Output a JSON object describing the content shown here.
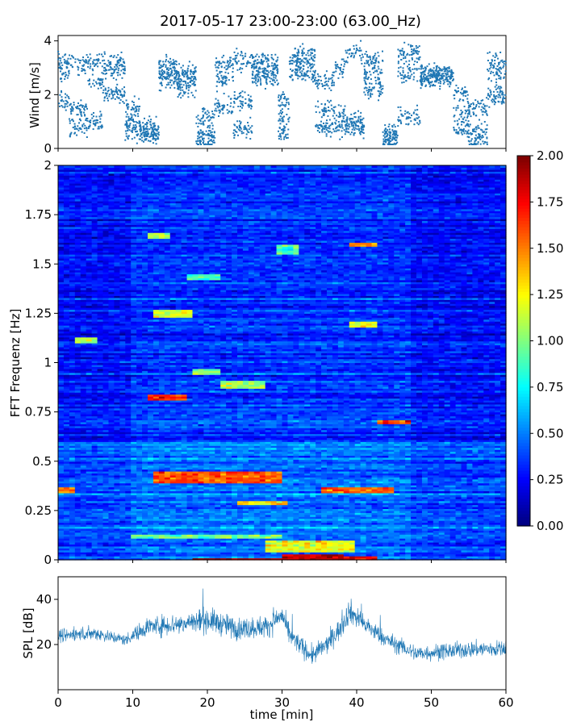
{
  "chart_data": [
    {
      "type": "scatter",
      "title": "2017-05-17 23:00-23:00 (63.00_Hz)",
      "ylabel": "Wind [m/s]",
      "xlim": [
        0,
        60
      ],
      "ylim": [
        0,
        4.2
      ],
      "yticks": [
        "0",
        "2",
        "4"
      ],
      "color": "#1f77b4",
      "segments": [
        {
          "x0": 0,
          "x1": 1.5,
          "levels": [
            3.2,
            2.8,
            1.8
          ]
        },
        {
          "x0": 1.5,
          "x1": 4,
          "levels": [
            3.1,
            1.5,
            0.8
          ]
        },
        {
          "x0": 4,
          "x1": 6,
          "levels": [
            3.2,
            2.5,
            1.0
          ]
        },
        {
          "x0": 6,
          "x1": 9,
          "levels": [
            3.2,
            2.9,
            2.0
          ]
        },
        {
          "x0": 9,
          "x1": 11,
          "levels": [
            1.5,
            0.6,
            0.9
          ]
        },
        {
          "x0": 11,
          "x1": 13.5,
          "levels": [
            0.8,
            0.6,
            0.5
          ]
        },
        {
          "x0": 13.5,
          "x1": 16,
          "levels": [
            3.1,
            2.8,
            2.5
          ]
        },
        {
          "x0": 16,
          "x1": 18.5,
          "levels": [
            2.8,
            2.6,
            2.2
          ]
        },
        {
          "x0": 18.5,
          "x1": 21,
          "levels": [
            1.2,
            0.6,
            0.3
          ]
        },
        {
          "x0": 21,
          "x1": 23.5,
          "levels": [
            2.5,
            3.1,
            1.5
          ]
        },
        {
          "x0": 23.5,
          "x1": 26,
          "levels": [
            3.3,
            1.8,
            0.7
          ]
        },
        {
          "x0": 26,
          "x1": 29.5,
          "levels": [
            3.2,
            2.9,
            2.6
          ]
        },
        {
          "x0": 29.5,
          "x1": 31,
          "levels": [
            1.2,
            0.6,
            1.8
          ]
        },
        {
          "x0": 31,
          "x1": 34.5,
          "levels": [
            3.5,
            3.2,
            2.8
          ]
        },
        {
          "x0": 34.5,
          "x1": 37,
          "levels": [
            1.5,
            0.8,
            2.5
          ]
        },
        {
          "x0": 37,
          "x1": 38.5,
          "levels": [
            0.8,
            1.2,
            3.0
          ]
        },
        {
          "x0": 38.5,
          "x1": 41,
          "levels": [
            1.0,
            0.7,
            3.5
          ]
        },
        {
          "x0": 41,
          "x1": 43.5,
          "levels": [
            3.3,
            2.8,
            2.2
          ]
        },
        {
          "x0": 43.5,
          "x1": 45.5,
          "levels": [
            0.6,
            0.4,
            0.2
          ]
        },
        {
          "x0": 45.5,
          "x1": 48.5,
          "levels": [
            3.5,
            2.8,
            1.2
          ]
        },
        {
          "x0": 48.5,
          "x1": 53,
          "levels": [
            2.7,
            2.6,
            2.8
          ]
        },
        {
          "x0": 53,
          "x1": 55,
          "levels": [
            1.2,
            0.7,
            2.0
          ]
        },
        {
          "x0": 55,
          "x1": 57.5,
          "levels": [
            0.6,
            0.3,
            1.5
          ]
        },
        {
          "x0": 57.5,
          "x1": 60,
          "levels": [
            3.2,
            2.8,
            2.0
          ]
        }
      ]
    },
    {
      "type": "heatmap",
      "ylabel": "FFT Frequenz [Hz]",
      "xlim": [
        0,
        60
      ],
      "ylim": [
        0,
        2
      ],
      "yticks": [
        "0",
        "0.25",
        "0.5",
        "0.75",
        "1",
        "1.25",
        "1.5",
        "1.75",
        "2"
      ],
      "colorbar": {
        "min": 0,
        "max": 2,
        "ticks": [
          "0.00",
          "0.25",
          "0.50",
          "0.75",
          "1.00",
          "1.25",
          "1.50",
          "1.75",
          "2.00"
        ],
        "colormap": "jet"
      },
      "hotspots": [
        {
          "t0": 0,
          "t1": 2,
          "f0": 0.34,
          "f1": 0.37,
          "v": 1.5
        },
        {
          "t0": 2,
          "t1": 5,
          "f0": 1.1,
          "f1": 1.13,
          "v": 1.1
        },
        {
          "t0": 12,
          "t1": 17,
          "f0": 0.81,
          "f1": 0.84,
          "v": 1.7
        },
        {
          "t0": 13,
          "t1": 30,
          "f0": 0.39,
          "f1": 0.45,
          "v": 1.6
        },
        {
          "t0": 13,
          "t1": 18,
          "f0": 1.23,
          "f1": 1.27,
          "v": 1.2
        },
        {
          "t0": 12,
          "t1": 15,
          "f0": 1.63,
          "f1": 1.66,
          "v": 1.1
        },
        {
          "t0": 18,
          "t1": 22,
          "f0": 0.94,
          "f1": 0.97,
          "v": 1.0
        },
        {
          "t0": 22,
          "t1": 28,
          "f0": 0.87,
          "f1": 0.91,
          "v": 1.1
        },
        {
          "t0": 17,
          "t1": 22,
          "f0": 1.42,
          "f1": 1.45,
          "v": 0.9
        },
        {
          "t0": 24,
          "t1": 31,
          "f0": 0.28,
          "f1": 0.3,
          "v": 1.3
        },
        {
          "t0": 29,
          "t1": 32,
          "f0": 1.55,
          "f1": 1.6,
          "v": 0.9
        },
        {
          "t0": 35,
          "t1": 45,
          "f0": 0.34,
          "f1": 0.37,
          "v": 1.6
        },
        {
          "t0": 39,
          "t1": 43,
          "f0": 1.59,
          "f1": 1.61,
          "v": 1.5
        },
        {
          "t0": 39,
          "t1": 43,
          "f0": 1.18,
          "f1": 1.21,
          "v": 1.2
        },
        {
          "t0": 43,
          "t1": 47,
          "f0": 0.69,
          "f1": 0.71,
          "v": 1.6
        },
        {
          "t0": 10,
          "t1": 30,
          "f0": 0.11,
          "f1": 0.13,
          "v": 1.0
        },
        {
          "t0": 18,
          "t1": 30,
          "f0": 0.0,
          "f1": 0.01,
          "v": 1.9
        },
        {
          "t0": 30,
          "t1": 38,
          "f0": 0.0,
          "f1": 0.03,
          "v": 1.9
        },
        {
          "t0": 38,
          "t1": 43,
          "f0": 0.0,
          "f1": 0.02,
          "v": 1.8
        },
        {
          "t0": 28,
          "t1": 40,
          "f0": 0.04,
          "f1": 0.1,
          "v": 1.2
        }
      ]
    },
    {
      "type": "line",
      "ylabel": "SPL [dB]",
      "xlabel": "time [min]",
      "xlim": [
        0,
        60
      ],
      "ylim": [
        0,
        50
      ],
      "yticks": [
        "20",
        "40"
      ],
      "xticks": [
        "0",
        "10",
        "20",
        "30",
        "40",
        "50",
        "60"
      ],
      "color": "#1f77b4",
      "envelope": [
        {
          "x": 0,
          "mean": 24,
          "spread": 5
        },
        {
          "x": 5,
          "mean": 25,
          "spread": 5
        },
        {
          "x": 9,
          "mean": 22,
          "spread": 4
        },
        {
          "x": 12,
          "mean": 28,
          "spread": 7
        },
        {
          "x": 16,
          "mean": 29,
          "spread": 8
        },
        {
          "x": 20,
          "mean": 31,
          "spread": 9
        },
        {
          "x": 24,
          "mean": 27,
          "spread": 8
        },
        {
          "x": 28,
          "mean": 28,
          "spread": 8
        },
        {
          "x": 30,
          "mean": 33,
          "spread": 8
        },
        {
          "x": 31,
          "mean": 24,
          "spread": 7
        },
        {
          "x": 34,
          "mean": 15,
          "spread": 7
        },
        {
          "x": 36,
          "mean": 20,
          "spread": 7
        },
        {
          "x": 38,
          "mean": 28,
          "spread": 8
        },
        {
          "x": 39,
          "mean": 35,
          "spread": 9
        },
        {
          "x": 41,
          "mean": 29,
          "spread": 7
        },
        {
          "x": 44,
          "mean": 22,
          "spread": 6
        },
        {
          "x": 48,
          "mean": 16,
          "spread": 6
        },
        {
          "x": 52,
          "mean": 17,
          "spread": 6
        },
        {
          "x": 56,
          "mean": 18,
          "spread": 6
        },
        {
          "x": 60,
          "mean": 18,
          "spread": 6
        }
      ]
    }
  ]
}
